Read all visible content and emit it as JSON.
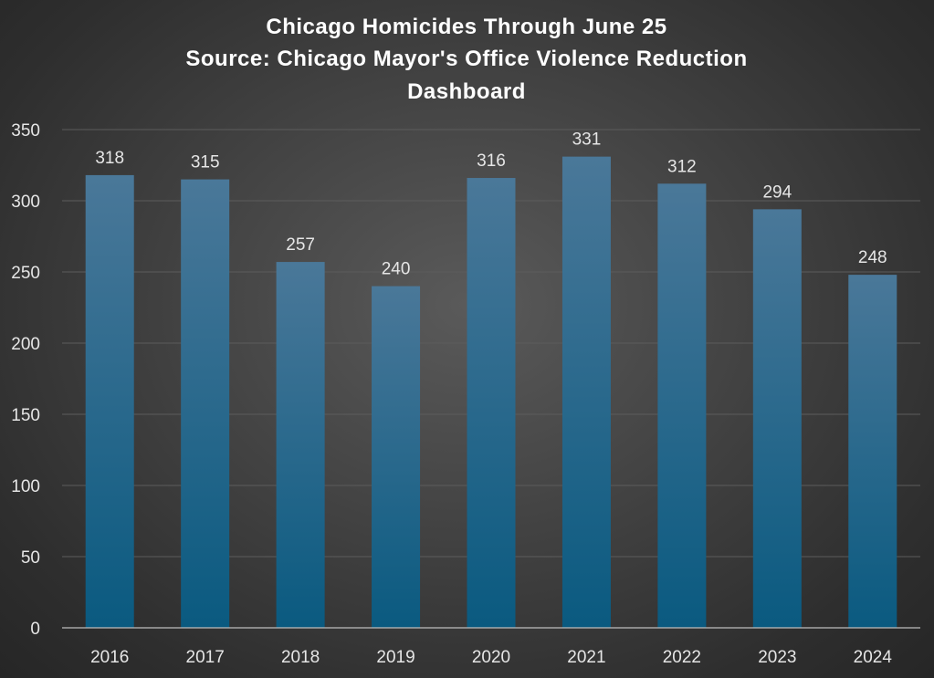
{
  "chart_data": {
    "type": "bar",
    "title": "Chicago Homicides Through June 25",
    "subtitle": "Source: Chicago Mayor's Office Violence Reduction Dashboard",
    "categories": [
      "2016",
      "2017",
      "2018",
      "2019",
      "2020",
      "2021",
      "2022",
      "2023",
      "2024"
    ],
    "values": [
      318,
      315,
      257,
      240,
      316,
      331,
      312,
      294,
      248
    ],
    "xlabel": "",
    "ylabel": "",
    "ylim": [
      0,
      350
    ],
    "yticks": [
      0,
      50,
      100,
      150,
      200,
      250,
      300,
      350
    ],
    "grid": true,
    "data_labels": true,
    "colors": {
      "bar_top": "#4a7899",
      "bar_bottom": "#0a5a80",
      "background": "#444444"
    }
  },
  "title_lines": [
    "Chicago Homicides Through June 25",
    "Source: Chicago Mayor's Office Violence Reduction",
    "Dashboard"
  ]
}
